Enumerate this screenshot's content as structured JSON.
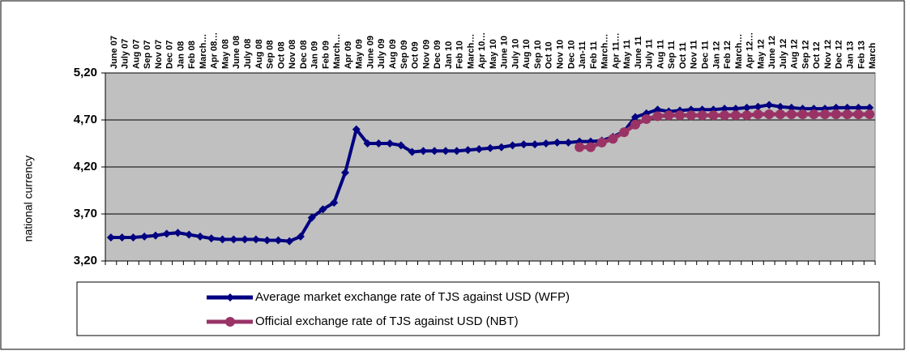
{
  "chart_data": {
    "type": "line",
    "y_label": "national currency",
    "categories": [
      "June 07",
      "July 07",
      "Aug 07",
      "Sep 07",
      "Nov 07",
      "Dec 07",
      "Jan 08",
      "Feb 08",
      "March…",
      "Apr 08…",
      "May 08",
      "June 08",
      "July 08",
      "Aug 08",
      "Sep 08",
      "Oct 08",
      "Nov 08",
      "Dec 08",
      "Jan 09",
      "Feb 09",
      "March…",
      "Apr 09",
      "May 09",
      "June 09",
      "July 09",
      "Aug 09",
      "Sep 09",
      "Oct 09",
      "Nov 09",
      "Dec 09",
      "Jan 10",
      "Feb 10",
      "March…",
      "Apr 10…",
      "May 10",
      "June 10",
      "July 10",
      "Aug 10",
      "Sep 10",
      "Oct 10",
      "Nov 10",
      "Dec 10",
      "Jan-11",
      "Feb 11",
      "March…",
      "Apr 11…",
      "May 11",
      "June 11",
      "July 11",
      "Aug 11",
      "Sep 11",
      "Oct 11",
      "Nov 11",
      "Dec 11",
      "Jan 12",
      "Feb 12",
      "March…",
      "Apr 12…",
      "May 12",
      "June 12",
      "July 12",
      "Aug 12",
      "Sep 12",
      "Oct 12",
      "Nov 12",
      "Dec 12",
      "Jan 13",
      "Feb 13",
      "March"
    ],
    "series": [
      {
        "name": "Average market exchange rate of TJS against USD (WFP)",
        "color": "#000080",
        "marker": "diamond",
        "values": [
          3.45,
          3.45,
          3.45,
          3.46,
          3.47,
          3.49,
          3.5,
          3.48,
          3.46,
          3.44,
          3.43,
          3.43,
          3.43,
          3.43,
          3.42,
          3.42,
          3.41,
          3.46,
          3.66,
          3.75,
          3.82,
          4.14,
          4.6,
          4.45,
          4.45,
          4.45,
          4.43,
          4.36,
          4.37,
          4.37,
          4.37,
          4.37,
          4.38,
          4.39,
          4.4,
          4.41,
          4.43,
          4.44,
          4.44,
          4.45,
          4.46,
          4.46,
          4.47,
          4.47,
          4.48,
          4.52,
          4.58,
          4.73,
          4.77,
          4.81,
          4.79,
          4.8,
          4.81,
          4.81,
          4.81,
          4.82,
          4.82,
          4.83,
          4.84,
          4.86,
          4.84,
          4.83,
          4.82,
          4.82,
          4.82,
          4.83,
          4.83,
          4.83,
          4.83
        ]
      },
      {
        "name": "Official exchange rate of TJS against USD (NBT)",
        "color": "#993366",
        "marker": "circle",
        "values": [
          null,
          null,
          null,
          null,
          null,
          null,
          null,
          null,
          null,
          null,
          null,
          null,
          null,
          null,
          null,
          null,
          null,
          null,
          null,
          null,
          null,
          null,
          null,
          null,
          null,
          null,
          null,
          null,
          null,
          null,
          null,
          null,
          null,
          null,
          null,
          null,
          null,
          null,
          null,
          null,
          null,
          null,
          4.41,
          4.41,
          4.46,
          4.5,
          4.57,
          4.65,
          4.71,
          4.74,
          4.75,
          4.75,
          4.75,
          4.75,
          4.75,
          4.75,
          4.75,
          4.75,
          4.76,
          4.76,
          4.76,
          4.76,
          4.76,
          4.76,
          4.76,
          4.76,
          4.76,
          4.76,
          4.76
        ]
      }
    ],
    "ylim": [
      3.2,
      5.2
    ],
    "yticks": [
      {
        "value": 3.2,
        "label": "3,20"
      },
      {
        "value": 3.7,
        "label": "3,70"
      },
      {
        "value": 4.2,
        "label": "4,20"
      },
      {
        "value": 4.7,
        "label": "4,70"
      },
      {
        "value": 5.2,
        "label": "5,20"
      }
    ],
    "grid": true,
    "plot_bg": "#c0c0c0",
    "legend": "bottom"
  }
}
